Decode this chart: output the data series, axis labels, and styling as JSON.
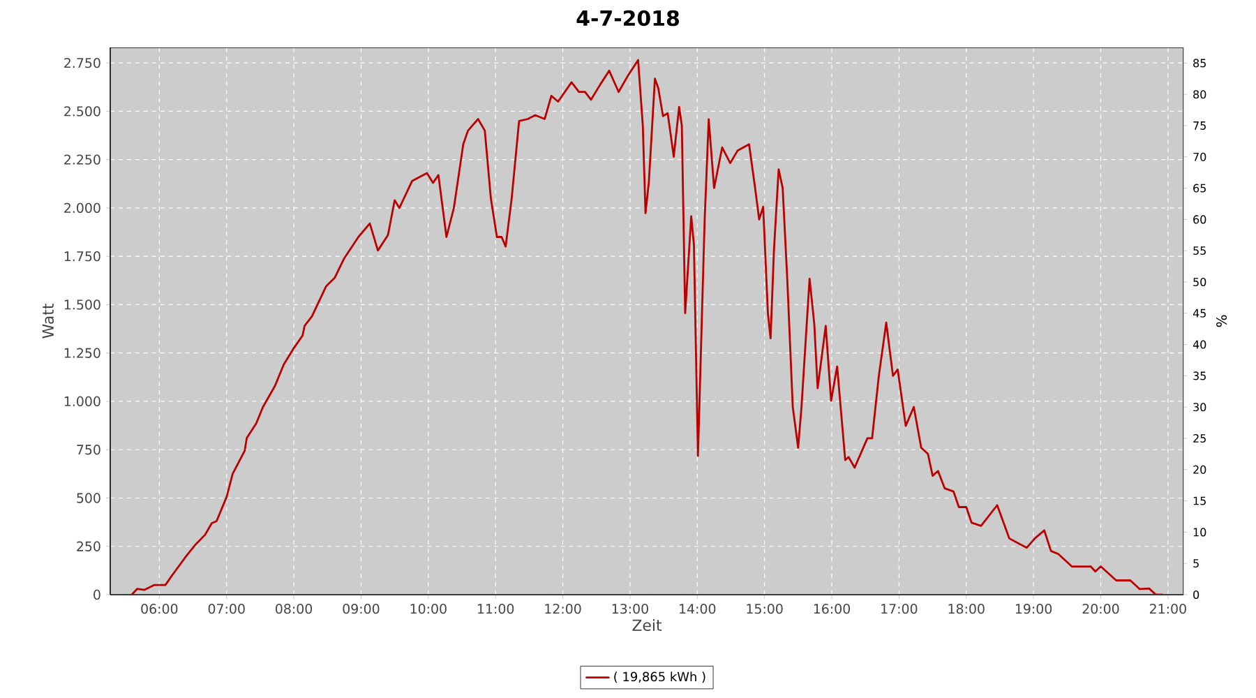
{
  "chart_data": {
    "type": "line",
    "title": "4-7-2018",
    "xlabel": "Zeit",
    "ylabel": "Watt",
    "y2label": "%",
    "xlim": [
      5.27,
      21.23
    ],
    "ylim": [
      0,
      2830
    ],
    "y2lim": [
      0,
      87.5
    ],
    "xticks": [
      {
        "value": 6,
        "label": "06:00"
      },
      {
        "value": 7,
        "label": "07:00"
      },
      {
        "value": 8,
        "label": "08:00"
      },
      {
        "value": 9,
        "label": "09:00"
      },
      {
        "value": 10,
        "label": "10:00"
      },
      {
        "value": 11,
        "label": "11:00"
      },
      {
        "value": 12,
        "label": "12:00"
      },
      {
        "value": 13,
        "label": "13:00"
      },
      {
        "value": 14,
        "label": "14:00"
      },
      {
        "value": 15,
        "label": "15:00"
      },
      {
        "value": 16,
        "label": "16:00"
      },
      {
        "value": 17,
        "label": "17:00"
      },
      {
        "value": 18,
        "label": "18:00"
      },
      {
        "value": 19,
        "label": "19:00"
      },
      {
        "value": 20,
        "label": "20:00"
      },
      {
        "value": 21,
        "label": "21:00"
      }
    ],
    "yticks": [
      0,
      250,
      500,
      750,
      {
        "value": 1000,
        "label": "1.000"
      },
      {
        "value": 1250,
        "label": "1.250"
      },
      {
        "value": 1500,
        "label": "1.500"
      },
      {
        "value": 1750,
        "label": "1.750"
      },
      {
        "value": 2000,
        "label": "2.000"
      },
      {
        "value": 2250,
        "label": "2.250"
      },
      {
        "value": 2500,
        "label": "2.500"
      },
      {
        "value": 2750,
        "label": "2.750"
      }
    ],
    "y2ticks": [
      0,
      5,
      10,
      15,
      20,
      25,
      30,
      35,
      40,
      45,
      50,
      55,
      60,
      65,
      70,
      75,
      80,
      85
    ],
    "grid": true,
    "legend": "bottom",
    "marker": "none",
    "line_style": "solid",
    "series": [
      {
        "name": "( 19,865 kWh )",
        "color": "#bb0000",
        "x": [
          5.59,
          5.67,
          5.78,
          5.92,
          6.09,
          6.19,
          6.4,
          6.54,
          6.68,
          6.78,
          6.85,
          7.0,
          7.09,
          7.27,
          7.3,
          7.44,
          7.54,
          7.72,
          7.85,
          7.99,
          8.13,
          8.16,
          8.27,
          8.48,
          8.61,
          8.75,
          8.96,
          9.13,
          9.25,
          9.4,
          9.5,
          9.57,
          9.76,
          9.98,
          10.07,
          10.15,
          10.27,
          10.38,
          10.52,
          10.59,
          10.74,
          10.84,
          10.93,
          11.02,
          11.09,
          11.15,
          11.24,
          11.35,
          11.48,
          11.59,
          11.73,
          11.83,
          11.93,
          12.13,
          12.24,
          12.33,
          12.42,
          12.56,
          12.69,
          12.83,
          12.97,
          13.12,
          13.19,
          13.23,
          13.28,
          13.37,
          13.42,
          13.49,
          13.56,
          13.65,
          13.73,
          13.77,
          13.82,
          13.91,
          13.95,
          14.01,
          14.11,
          14.17,
          14.25,
          14.37,
          14.49,
          14.6,
          14.77,
          14.86,
          14.92,
          14.98,
          15.05,
          15.09,
          15.14,
          15.21,
          15.27,
          15.34,
          15.42,
          15.5,
          15.55,
          15.67,
          15.74,
          15.79,
          15.91,
          15.99,
          16.08,
          16.2,
          16.25,
          16.34,
          16.53,
          16.6,
          16.7,
          16.81,
          16.91,
          16.98,
          17.1,
          17.22,
          17.33,
          17.43,
          17.5,
          17.58,
          17.68,
          17.81,
          17.89,
          18.0,
          18.08,
          18.22,
          18.46,
          18.64,
          18.81,
          18.9,
          19.02,
          19.16,
          19.26,
          19.37,
          19.57,
          19.85,
          19.92,
          20.0,
          20.23,
          20.44,
          20.58,
          20.72,
          20.82,
          20.92
        ],
        "values": [
          0,
          30,
          25,
          50,
          50,
          100,
          200,
          260,
          310,
          370,
          380,
          505,
          625,
          745,
          810,
          885,
          970,
          1080,
          1190,
          1270,
          1340,
          1390,
          1440,
          1595,
          1640,
          1740,
          1850,
          1920,
          1780,
          1860,
          2040,
          2000,
          2140,
          2180,
          2130,
          2170,
          1850,
          2000,
          2330,
          2400,
          2460,
          2400,
          2050,
          1850,
          1850,
          1800,
          2050,
          2450,
          2460,
          2480,
          2460,
          2580,
          2550,
          2650,
          2600,
          2600,
          2560,
          2640,
          2710,
          2600,
          2685,
          2765,
          2426,
          1973,
          2135,
          2669,
          2620,
          2475,
          2490,
          2265,
          2523,
          2426,
          1456,
          1957,
          1810,
          718,
          1941,
          2459,
          2103,
          2313,
          2232,
          2297,
          2329,
          2103,
          1941,
          2006,
          1456,
          1326,
          1780,
          2200,
          2103,
          1618,
          971,
          760,
          971,
          1634,
          1400,
          1068,
          1390,
          1003,
          1180,
          696,
          712,
          657,
          809,
          809,
          1132,
          1407,
          1132,
          1165,
          873,
          971,
          760,
          728,
          615,
          640,
          550,
          534,
          453,
          453,
          372,
          356,
          463,
          291,
          259,
          243,
          291,
          333,
          226,
          210,
          146,
          146,
          120,
          146,
          74,
          74,
          29,
          32,
          0,
          0
        ]
      }
    ]
  }
}
